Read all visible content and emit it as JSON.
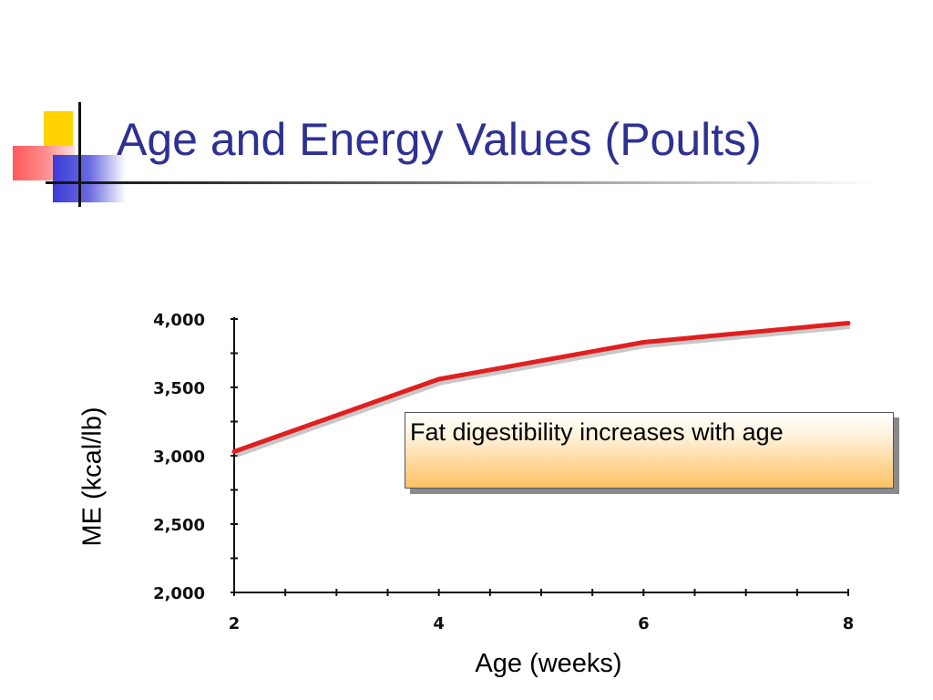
{
  "slide": {
    "title": "Age and Energy Values (Poults)",
    "callout": "Fat digestibility increases with age"
  },
  "chart_data": {
    "type": "line",
    "title": "",
    "xlabel": "Age (weeks)",
    "ylabel": "ME (kcal/lb)",
    "x": [
      2,
      4,
      6,
      8
    ],
    "x_ticks": [
      "2",
      "4",
      "6",
      "8"
    ],
    "y_ticks": [
      "2,000",
      "2,500",
      "3,000",
      "3,500",
      "4,000"
    ],
    "y_tick_values": [
      2000,
      2500,
      3000,
      3500,
      4000
    ],
    "xlim": [
      2,
      8
    ],
    "ylim": [
      2000,
      4000
    ],
    "grid": false,
    "series": [
      {
        "values": [
          3030,
          3560,
          3830,
          3970
        ],
        "color": "#E02020"
      }
    ]
  },
  "colors": {
    "title": "#2E3192",
    "line": "#E02020"
  }
}
